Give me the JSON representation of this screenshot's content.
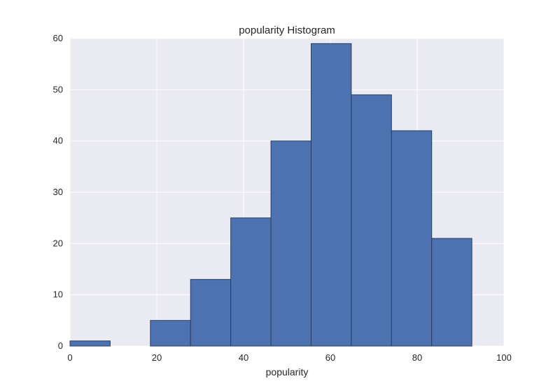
{
  "chart_data": {
    "type": "bar",
    "title": "popularity Histogram",
    "xlabel": "popularity",
    "ylabel": "",
    "xlim": [
      0,
      100
    ],
    "ylim": [
      0,
      60
    ],
    "xticks": [
      "0",
      "20",
      "40",
      "60",
      "80",
      "100"
    ],
    "yticks": [
      "0",
      "10",
      "20",
      "30",
      "40",
      "50",
      "60"
    ],
    "grid": true,
    "bins": [
      {
        "start": 0,
        "end": 9.26,
        "count": 1
      },
      {
        "start": 9.26,
        "end": 18.52,
        "count": 0
      },
      {
        "start": 18.52,
        "end": 27.78,
        "count": 5
      },
      {
        "start": 27.78,
        "end": 37.04,
        "count": 13
      },
      {
        "start": 37.04,
        "end": 46.3,
        "count": 25
      },
      {
        "start": 46.3,
        "end": 55.56,
        "count": 40
      },
      {
        "start": 55.56,
        "end": 64.82,
        "count": 59
      },
      {
        "start": 64.82,
        "end": 74.08,
        "count": 49
      },
      {
        "start": 74.08,
        "end": 83.34,
        "count": 42
      },
      {
        "start": 83.34,
        "end": 92.6,
        "count": 21
      }
    ],
    "colors": {
      "bar_fill": "#4c72b0",
      "bar_edge": "#2a3f5f",
      "plot_background": "#eaeaf2",
      "grid": "#ffffff"
    }
  }
}
